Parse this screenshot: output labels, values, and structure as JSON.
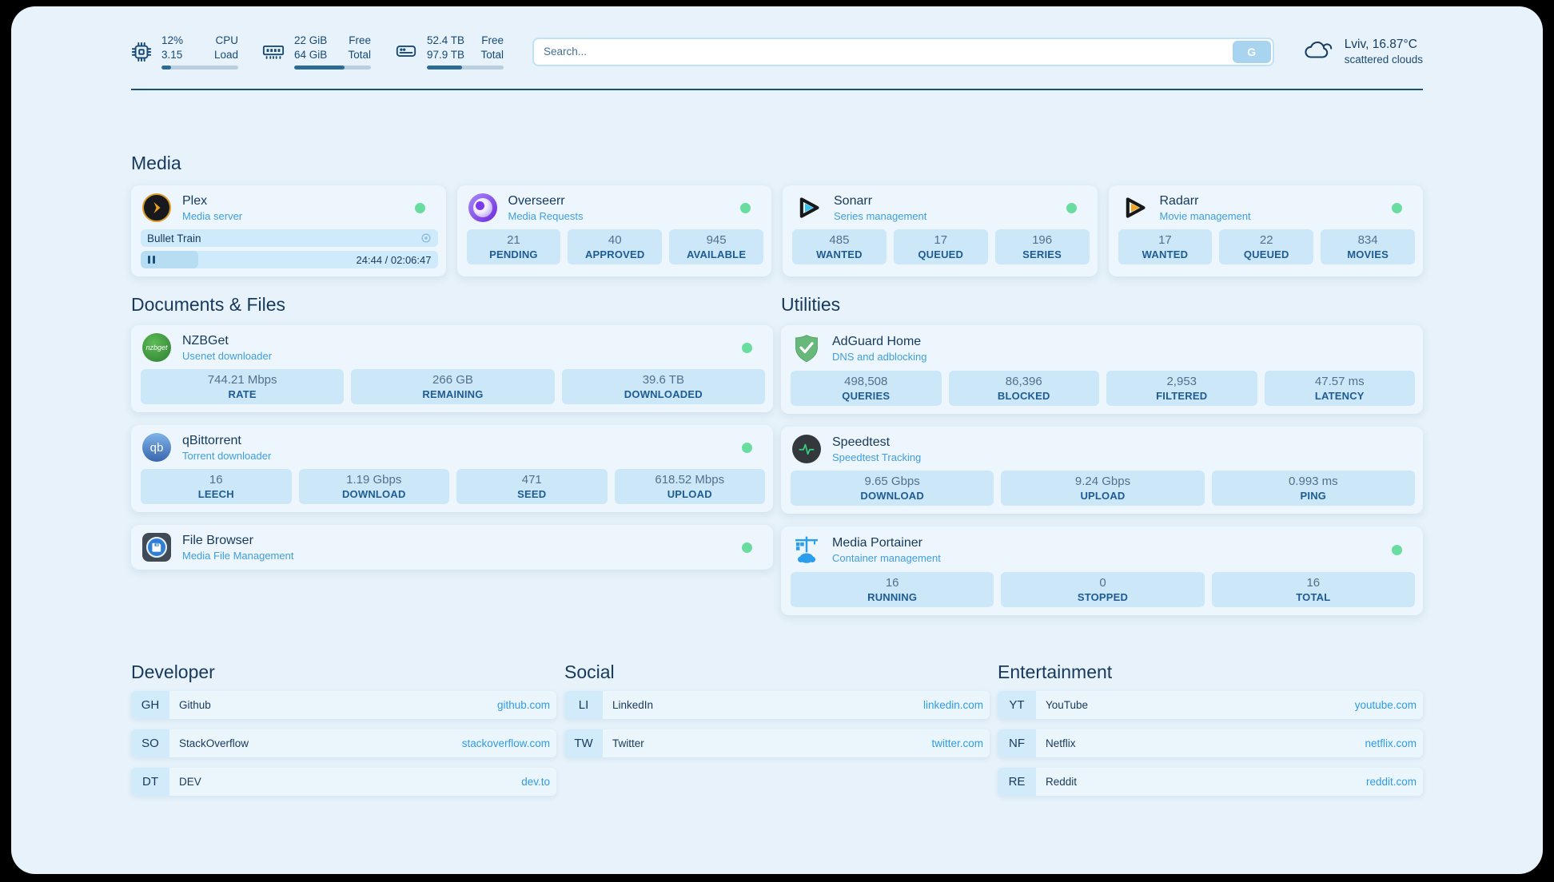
{
  "header": {
    "stats": [
      {
        "icon": "cpu-icon",
        "value_top": "12%",
        "value_bottom": "3.15",
        "label_top": "CPU",
        "label_bottom": "Load",
        "progress": 12
      },
      {
        "icon": "ram-icon",
        "value_top": "22 GiB",
        "value_bottom": "64 GiB",
        "label_top": "Free",
        "label_bottom": "Total",
        "progress": 66
      },
      {
        "icon": "disk-icon",
        "value_top": "52.4 TB",
        "value_bottom": "97.9 TB",
        "label_top": "Free",
        "label_bottom": "Total",
        "progress": 46
      }
    ],
    "search": {
      "placeholder": "Search...",
      "button_label": "G"
    },
    "weather": {
      "icon": "cloud-icon",
      "location_temp": "Lviv, 16.87°C",
      "condition": "scattered clouds"
    }
  },
  "media": {
    "title": "Media",
    "plex": {
      "name": "Plex",
      "subtitle": "Media server",
      "status": "online",
      "now_playing": "Bullet Train",
      "time": "24:44 / 02:06:47",
      "progress": 19.5
    },
    "overseerr": {
      "name": "Overseerr",
      "subtitle": "Media Requests",
      "status": "online",
      "stats": [
        {
          "value": "21",
          "label": "PENDING"
        },
        {
          "value": "40",
          "label": "APPROVED"
        },
        {
          "value": "945",
          "label": "AVAILABLE"
        }
      ]
    },
    "sonarr": {
      "name": "Sonarr",
      "subtitle": "Series management",
      "status": "online",
      "stats": [
        {
          "value": "485",
          "label": "WANTED"
        },
        {
          "value": "17",
          "label": "QUEUED"
        },
        {
          "value": "196",
          "label": "SERIES"
        }
      ]
    },
    "radarr": {
      "name": "Radarr",
      "subtitle": "Movie management",
      "status": "online",
      "stats": [
        {
          "value": "17",
          "label": "WANTED"
        },
        {
          "value": "22",
          "label": "QUEUED"
        },
        {
          "value": "834",
          "label": "MOVIES"
        }
      ]
    }
  },
  "documents": {
    "title": "Documents & Files",
    "nzbget": {
      "name": "NZBGet",
      "subtitle": "Usenet downloader",
      "status": "online",
      "stats": [
        {
          "value": "744.21 Mbps",
          "label": "RATE"
        },
        {
          "value": "266 GB",
          "label": "REMAINING"
        },
        {
          "value": "39.6 TB",
          "label": "DOWNLOADED"
        }
      ]
    },
    "qbittorrent": {
      "name": "qBittorrent",
      "subtitle": "Torrent downloader",
      "status": "online",
      "stats": [
        {
          "value": "16",
          "label": "LEECH"
        },
        {
          "value": "1.19 Gbps",
          "label": "DOWNLOAD"
        },
        {
          "value": "471",
          "label": "SEED"
        },
        {
          "value": "618.52 Mbps",
          "label": "UPLOAD"
        }
      ]
    },
    "filebrowser": {
      "name": "File Browser",
      "subtitle": "Media File Management",
      "status": "online"
    }
  },
  "utilities": {
    "title": "Utilities",
    "adguard": {
      "name": "AdGuard Home",
      "subtitle": "DNS and adblocking",
      "stats": [
        {
          "value": "498,508",
          "label": "QUERIES"
        },
        {
          "value": "86,396",
          "label": "BLOCKED"
        },
        {
          "value": "2,953",
          "label": "FILTERED"
        },
        {
          "value": "47.57 ms",
          "label": "LATENCY"
        }
      ]
    },
    "speedtest": {
      "name": "Speedtest",
      "subtitle": "Speedtest Tracking",
      "stats": [
        {
          "value": "9.65 Gbps",
          "label": "DOWNLOAD"
        },
        {
          "value": "9.24 Gbps",
          "label": "UPLOAD"
        },
        {
          "value": "0.993 ms",
          "label": "PING"
        }
      ]
    },
    "portainer": {
      "name": "Media Portainer",
      "subtitle": "Container management",
      "status": "online",
      "stats": [
        {
          "value": "16",
          "label": "RUNNING"
        },
        {
          "value": "0",
          "label": "STOPPED"
        },
        {
          "value": "16",
          "label": "TOTAL"
        }
      ]
    }
  },
  "bookmarks": {
    "developer": {
      "title": "Developer",
      "links": [
        {
          "tag": "GH",
          "name": "Github",
          "url": "github.com"
        },
        {
          "tag": "SO",
          "name": "StackOverflow",
          "url": "stackoverflow.com"
        },
        {
          "tag": "DT",
          "name": "DEV",
          "url": "dev.to"
        }
      ]
    },
    "social": {
      "title": "Social",
      "links": [
        {
          "tag": "LI",
          "name": "LinkedIn",
          "url": "linkedin.com"
        },
        {
          "tag": "TW",
          "name": "Twitter",
          "url": "twitter.com"
        }
      ]
    },
    "entertainment": {
      "title": "Entertainment",
      "links": [
        {
          "tag": "YT",
          "name": "YouTube",
          "url": "youtube.com"
        },
        {
          "tag": "NF",
          "name": "Netflix",
          "url": "netflix.com"
        },
        {
          "tag": "RE",
          "name": "Reddit",
          "url": "reddit.com"
        }
      ]
    }
  },
  "colors": {
    "page_bg": "#e7f2fa",
    "card_bg": "#edf6fc",
    "stat_box_bg": "#cbe7f8",
    "accent_navy": "#16395c",
    "accent_blue": "#2e9ce7",
    "subtitle_blue": "#3f9ede",
    "status_green": "#69dd9f",
    "progress_fill": "#2e6b94",
    "progress_track": "#b9cfdf"
  }
}
